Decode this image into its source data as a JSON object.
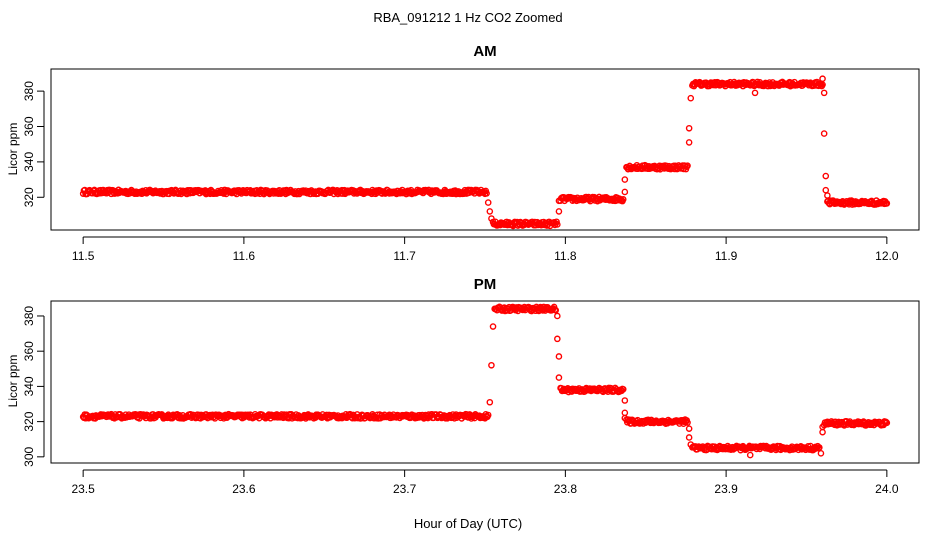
{
  "figure": {
    "title": "RBA_091212  1 Hz CO2 Zoomed",
    "xlabel": "Hour of Day (UTC)"
  },
  "colors": {
    "points": "#ff0000",
    "axes": "#000000",
    "background": "#ffffff"
  },
  "chart_data": [
    {
      "type": "scatter",
      "title": "AM",
      "ylabel": "Licor ppm",
      "xlim": [
        11.48,
        12.02
      ],
      "ylim": [
        301.5,
        392.5
      ],
      "xticks": [
        11.5,
        11.6,
        11.7,
        11.8,
        11.9,
        12.0
      ],
      "xtick_labels": [
        "11.5",
        "11.6",
        "11.7",
        "11.8",
        "11.9",
        "12.0"
      ],
      "yticks": [
        320,
        340,
        360,
        380
      ],
      "ytick_labels": [
        "320",
        "340",
        "360",
        "380"
      ],
      "grid": false,
      "series": [
        {
          "marker": "open-circle",
          "segments": [
            {
              "x_start": 11.5,
              "x_end": 11.751,
              "y": 323
            },
            {
              "x_start": 11.755,
              "x_end": 11.795,
              "y": 305
            },
            {
              "x_start": 11.797,
              "x_end": 11.836,
              "y": 319
            },
            {
              "x_start": 11.838,
              "x_end": 11.876,
              "y": 337
            },
            {
              "x_start": 11.879,
              "x_end": 11.96,
              "y": 384
            },
            {
              "x_start": 11.963,
              "x_end": 12.0,
              "y": 317
            }
          ],
          "transition_points": [
            {
              "x": 11.752,
              "y": 317
            },
            {
              "x": 11.753,
              "y": 312
            },
            {
              "x": 11.754,
              "y": 308
            },
            {
              "x": 11.796,
              "y": 312
            },
            {
              "x": 11.796,
              "y": 318
            },
            {
              "x": 11.837,
              "y": 323
            },
            {
              "x": 11.837,
              "y": 330
            },
            {
              "x": 11.877,
              "y": 351
            },
            {
              "x": 11.877,
              "y": 359
            },
            {
              "x": 11.878,
              "y": 376
            },
            {
              "x": 11.918,
              "y": 379
            },
            {
              "x": 11.96,
              "y": 387
            },
            {
              "x": 11.961,
              "y": 379
            },
            {
              "x": 11.961,
              "y": 356
            },
            {
              "x": 11.962,
              "y": 332
            },
            {
              "x": 11.962,
              "y": 324
            },
            {
              "x": 11.963,
              "y": 321
            }
          ]
        }
      ]
    },
    {
      "type": "scatter",
      "title": "PM",
      "ylabel": "Licor ppm",
      "xlim": [
        23.48,
        24.02
      ],
      "ylim": [
        296.5,
        388.5
      ],
      "xticks": [
        23.5,
        23.6,
        23.7,
        23.8,
        23.9,
        24.0
      ],
      "xtick_labels": [
        "23.5",
        "23.6",
        "23.7",
        "23.8",
        "23.9",
        "24.0"
      ],
      "yticks": [
        300,
        320,
        340,
        360,
        380
      ],
      "ytick_labels": [
        "300",
        "320",
        "340",
        "360",
        "380"
      ],
      "grid": false,
      "series": [
        {
          "marker": "open-circle",
          "segments": [
            {
              "x_start": 23.5,
              "x_end": 23.752,
              "y": 323
            },
            {
              "x_start": 23.756,
              "x_end": 23.794,
              "y": 384
            },
            {
              "x_start": 23.797,
              "x_end": 23.836,
              "y": 338
            },
            {
              "x_start": 23.838,
              "x_end": 23.876,
              "y": 320
            },
            {
              "x_start": 23.879,
              "x_end": 23.958,
              "y": 305
            },
            {
              "x_start": 23.961,
              "x_end": 24.0,
              "y": 319
            }
          ],
          "transition_points": [
            {
              "x": 23.753,
              "y": 331
            },
            {
              "x": 23.754,
              "y": 352
            },
            {
              "x": 23.755,
              "y": 374
            },
            {
              "x": 23.795,
              "y": 380
            },
            {
              "x": 23.795,
              "y": 367
            },
            {
              "x": 23.796,
              "y": 357
            },
            {
              "x": 23.796,
              "y": 345
            },
            {
              "x": 23.837,
              "y": 332
            },
            {
              "x": 23.837,
              "y": 325
            },
            {
              "x": 23.837,
              "y": 322
            },
            {
              "x": 23.877,
              "y": 316
            },
            {
              "x": 23.877,
              "y": 311
            },
            {
              "x": 23.878,
              "y": 307
            },
            {
              "x": 23.915,
              "y": 301
            },
            {
              "x": 23.959,
              "y": 302
            },
            {
              "x": 23.96,
              "y": 314
            },
            {
              "x": 23.96,
              "y": 317
            }
          ]
        }
      ]
    }
  ]
}
